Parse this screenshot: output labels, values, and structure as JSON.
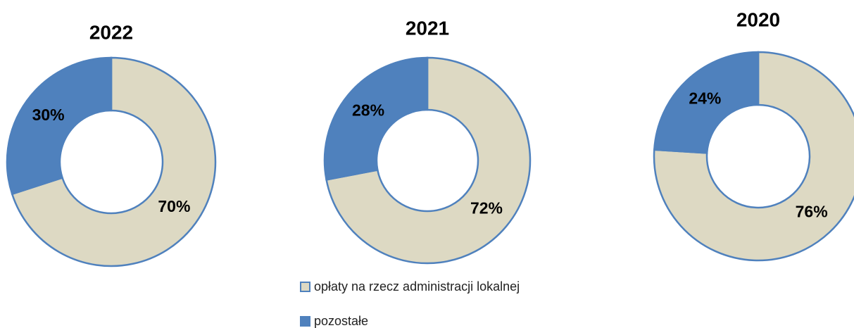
{
  "chart_data": [
    {
      "type": "pie",
      "title": "2022",
      "values": [
        70,
        30
      ],
      "value_labels": [
        "70%",
        "30%"
      ]
    },
    {
      "type": "pie",
      "title": "2021",
      "values": [
        72,
        28
      ],
      "value_labels": [
        "72%",
        "28%"
      ]
    },
    {
      "type": "pie",
      "title": "2020",
      "values": [
        76,
        24
      ],
      "value_labels": [
        "76%",
        "24%"
      ]
    }
  ],
  "legend": {
    "items": [
      {
        "name": "opłaty na rzecz administracji lokalnej",
        "color": "#ddd9c3"
      },
      {
        "name": "pozostałe",
        "color": "#4f81bd"
      }
    ]
  }
}
